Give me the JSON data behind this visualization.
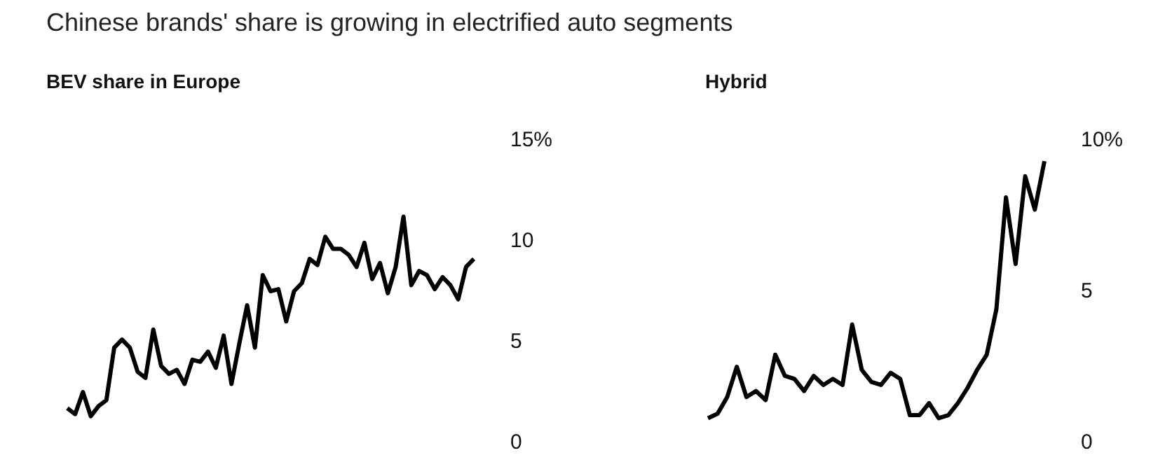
{
  "chart_data": [
    {
      "type": "line",
      "title": "Chinese brands' share is growing in electrified auto segments",
      "subtitle": "BEV share in Europe",
      "categories": [
        null,
        null,
        null,
        null,
        null,
        null,
        null,
        null,
        null,
        null,
        null,
        null,
        null,
        null,
        null,
        null,
        null,
        null,
        null,
        null,
        null,
        null,
        null,
        null,
        null,
        null,
        null,
        null,
        null,
        null,
        null,
        null,
        null,
        null,
        null,
        null,
        null,
        null,
        null,
        null,
        null,
        null,
        null,
        null,
        null,
        null,
        null,
        null,
        null,
        null,
        null,
        null,
        null
      ],
      "values": [
        1.7,
        1.4,
        2.5,
        1.3,
        1.8,
        2.1,
        4.7,
        5.1,
        4.7,
        3.5,
        3.2,
        5.6,
        3.8,
        3.4,
        3.6,
        2.9,
        4.1,
        4.0,
        4.5,
        3.7,
        5.3,
        2.9,
        4.9,
        6.8,
        4.7,
        8.3,
        7.5,
        7.6,
        6.0,
        7.5,
        7.9,
        9.1,
        8.8,
        10.2,
        9.6,
        9.6,
        9.3,
        8.7,
        9.9,
        8.1,
        8.9,
        7.4,
        8.7,
        11.2,
        7.8,
        8.5,
        8.3,
        7.6,
        8.2,
        7.8,
        7.1,
        8.7,
        9.1
      ],
      "color": "#000000",
      "ylim": [
        0,
        15
      ],
      "yticks": [
        0,
        5,
        10,
        {
          "value": 15,
          "label": "15%"
        }
      ]
    },
    {
      "type": "line",
      "title": "Hybrid",
      "categories": [
        null,
        null,
        null,
        null,
        null,
        null,
        null,
        null,
        null,
        null,
        null,
        null,
        null,
        null,
        null,
        null,
        null,
        null,
        null,
        null,
        null,
        null,
        null,
        null,
        null,
        null,
        null,
        null,
        null,
        null,
        null,
        null,
        null,
        null,
        null,
        null
      ],
      "values": [
        0.8,
        0.95,
        1.5,
        2.5,
        1.5,
        1.7,
        1.4,
        2.9,
        2.2,
        2.1,
        1.7,
        2.2,
        1.9,
        2.1,
        1.9,
        3.9,
        2.4,
        2.0,
        1.9,
        2.3,
        2.1,
        0.9,
        0.9,
        1.3,
        0.8,
        0.9,
        1.3,
        1.8,
        2.4,
        2.9,
        4.4,
        8.1,
        5.9,
        8.8,
        7.7,
        9.3
      ],
      "color": "#000000",
      "ylim": [
        0,
        10
      ],
      "yticks": [
        0,
        5,
        {
          "value": 10,
          "label": "10%"
        }
      ]
    }
  ]
}
